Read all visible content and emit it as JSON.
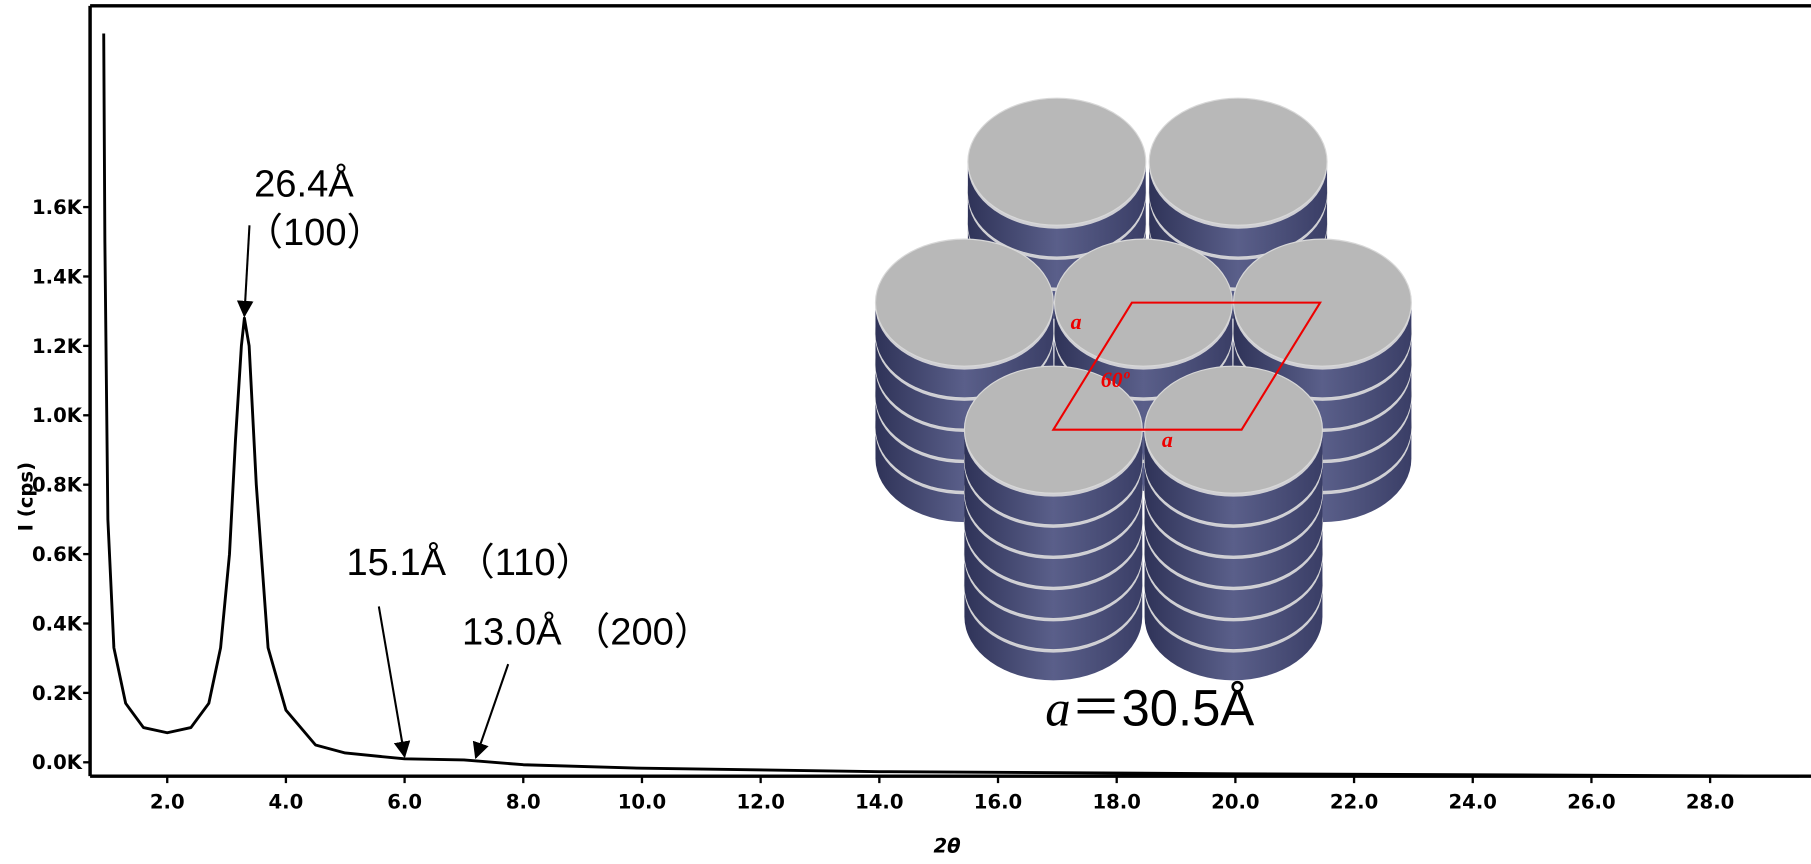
{
  "chart_data": {
    "type": "line",
    "x_label": "2θ",
    "y_label": "I (cps)",
    "xlim": [
      0.7,
      29.7
    ],
    "ylim": [
      -40,
      2180
    ],
    "xticks": [
      {
        "value": 2,
        "label": "2.0"
      },
      {
        "value": 4,
        "label": "4.0"
      },
      {
        "value": 6,
        "label": "6.0"
      },
      {
        "value": 8,
        "label": "8.0"
      },
      {
        "value": 10,
        "label": "10.0"
      },
      {
        "value": 12,
        "label": "12.0"
      },
      {
        "value": 14,
        "label": "14.0"
      },
      {
        "value": 16,
        "label": "16.0"
      },
      {
        "value": 18,
        "label": "18.0"
      },
      {
        "value": 20,
        "label": "20.0"
      },
      {
        "value": 22,
        "label": "22.0"
      },
      {
        "value": 24,
        "label": "24.0"
      },
      {
        "value": 26,
        "label": "26.0"
      },
      {
        "value": 28,
        "label": "28.0"
      }
    ],
    "yticks": [
      {
        "value": 0,
        "label": "0.0K"
      },
      {
        "value": 200,
        "label": "0.2K"
      },
      {
        "value": 400,
        "label": "0.4K"
      },
      {
        "value": 600,
        "label": "0.6K"
      },
      {
        "value": 800,
        "label": "0.8K"
      },
      {
        "value": 1000,
        "label": "1.0K"
      },
      {
        "value": 1200,
        "label": "1.2K"
      },
      {
        "value": 1400,
        "label": "1.4K"
      },
      {
        "value": 1600,
        "label": "1.6K"
      }
    ],
    "x": [
      0.93,
      0.95,
      1.0,
      1.1,
      1.3,
      1.6,
      2.0,
      2.4,
      2.7,
      2.9,
      3.05,
      3.15,
      3.25,
      3.3,
      3.38,
      3.5,
      3.7,
      4.0,
      4.5,
      5.0,
      6.0,
      7.0,
      8.0,
      10,
      14,
      20,
      29.5
    ],
    "series": [
      {
        "color": "#000000",
        "values": [
          2100,
          1500,
          700,
          330,
          170,
          100,
          85,
          100,
          170,
          330,
          600,
          930,
          1200,
          1280,
          1200,
          800,
          330,
          150,
          50,
          27,
          10,
          7,
          -7,
          -17,
          -27,
          -33,
          -40
        ]
      }
    ],
    "annotations": [
      {
        "text": "26.4Å",
        "sub": "（100）",
        "x": 3.3,
        "y": 1280
      },
      {
        "text": "15.1Å （110）",
        "x": 6.0,
        "y": 10
      },
      {
        "text": "13.0Å （200）",
        "x": 7.2,
        "y": 7
      }
    ],
    "diagram": {
      "side_label": "a",
      "base_label": "a",
      "angle_label": "60º",
      "caption_symbol": "a",
      "caption_value": "＝30.5Å"
    }
  }
}
